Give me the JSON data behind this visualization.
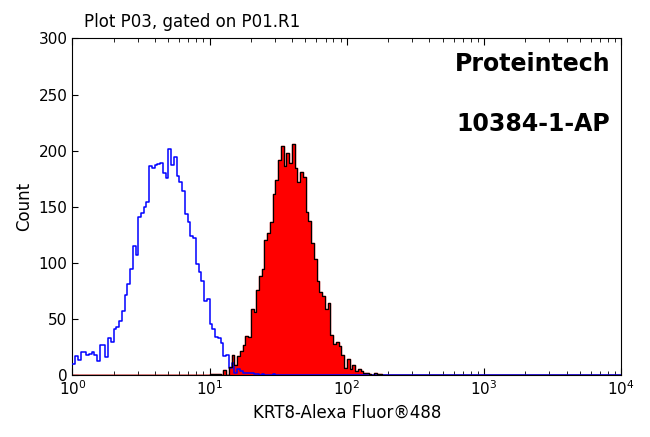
{
  "title": "Plot P03, gated on P01.R1",
  "brand_line1": "Proteintech",
  "brand_line2": "10384-1-AP",
  "xlabel": "KRT8-Alexa Fluor®488",
  "ylabel": "Count",
  "xlim_log": [
    0,
    4
  ],
  "ylim": [
    0,
    300
  ],
  "yticks": [
    0,
    50,
    100,
    150,
    200,
    250,
    300
  ],
  "background_color": "#ffffff",
  "blue_log_mean": 0.68,
  "blue_log_std": 0.2,
  "blue_peak_height": 200,
  "blue_n": 12000,
  "blue_noise_n": 600,
  "red_log_mean": 1.58,
  "red_log_std": 0.165,
  "red_peak_height": 210,
  "red_n": 10000,
  "n_bins": 200,
  "blue_color": "#0000ff",
  "red_color": "#ff0000",
  "black_color": "#000000",
  "title_fontsize": 12,
  "brand_fontsize": 17,
  "label_fontsize": 12,
  "tick_fontsize": 11,
  "seed": 12345
}
